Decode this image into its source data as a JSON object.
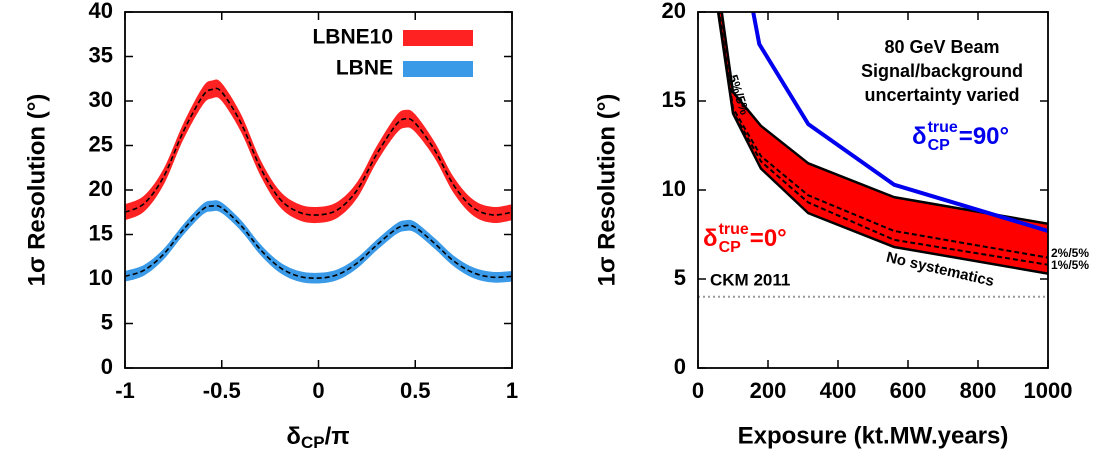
{
  "chart_data": [
    {
      "type": "band",
      "xlabel": {
        "base": "δ",
        "sub": "CP",
        "tail": "/π"
      },
      "ylabel": "1σ Resolution (°)",
      "xlim": [
        -1,
        1
      ],
      "xticks": [
        -1,
        -0.5,
        0,
        0.5,
        1
      ],
      "ylim": [
        0,
        40
      ],
      "yticks": [
        0,
        5,
        10,
        15,
        20,
        25,
        30,
        35,
        40
      ],
      "x": [
        -1,
        -0.9,
        -0.8,
        -0.7,
        -0.6,
        -0.55,
        -0.5,
        -0.4,
        -0.3,
        -0.2,
        -0.1,
        0,
        0.1,
        0.2,
        0.3,
        0.4,
        0.45,
        0.5,
        0.6,
        0.7,
        0.8,
        0.9,
        1
      ],
      "legend": "upper right",
      "series": [
        {
          "name": "LBNE10",
          "color": "#ff2222",
          "values": [
            17.5,
            18.5,
            21.5,
            26.5,
            30.5,
            31.3,
            31,
            27.5,
            22.5,
            19,
            17.5,
            17.2,
            17.8,
            20,
            24,
            27.3,
            28,
            27.5,
            24.5,
            20.5,
            18,
            17.2,
            17.5
          ],
          "upper": [
            18.4,
            19.4,
            22.4,
            27.4,
            31.5,
            32.3,
            32,
            28.5,
            23.4,
            19.9,
            18.4,
            18.1,
            18.7,
            20.9,
            24.9,
            28.3,
            29,
            28.5,
            25.4,
            21.4,
            18.9,
            18.1,
            18.4
          ],
          "lower": [
            16.6,
            17.6,
            20.6,
            25.6,
            29.5,
            30.3,
            30,
            26.5,
            21.6,
            18.1,
            16.6,
            16.3,
            16.9,
            19.1,
            23.1,
            26.3,
            27,
            26.5,
            23.6,
            19.6,
            17.1,
            16.3,
            16.6
          ]
        },
        {
          "name": "LBNE",
          "color": "#3a9ae8",
          "values": [
            10.3,
            11,
            12.8,
            15.5,
            17.8,
            18.2,
            18,
            16,
            13.3,
            11.3,
            10.3,
            10.1,
            10.5,
            11.8,
            13.8,
            15.6,
            16,
            15.8,
            14,
            12,
            10.7,
            10.2,
            10.3
          ],
          "upper": [
            10.9,
            11.6,
            13.4,
            16.1,
            18.4,
            18.8,
            18.6,
            16.6,
            13.9,
            11.9,
            10.9,
            10.7,
            11.1,
            12.4,
            14.4,
            16.2,
            16.6,
            16.4,
            14.6,
            12.6,
            11.3,
            10.8,
            10.9
          ],
          "lower": [
            9.7,
            10.4,
            12.2,
            14.9,
            17.2,
            17.6,
            17.4,
            15.4,
            12.7,
            10.7,
            9.7,
            9.5,
            9.9,
            11.2,
            13.2,
            15,
            15.4,
            15.2,
            13.4,
            11.4,
            10.1,
            9.6,
            9.7
          ]
        }
      ]
    },
    {
      "type": "line",
      "xlabel": "Exposure (kt.MW.years)",
      "ylabel": "1σ Resolution (°)",
      "xlim": [
        0,
        1000
      ],
      "xticks": [
        0,
        200,
        400,
        600,
        800,
        1000
      ],
      "ylim": [
        0,
        20
      ],
      "yticks": [
        0,
        5,
        10,
        15,
        20
      ],
      "x": [
        50,
        100,
        180,
        315,
        560,
        1000
      ],
      "band_between": [
        0,
        1
      ],
      "band_color": "#ff0000",
      "series": [
        {
          "name": "5%/5%",
          "color": "#000000",
          "dash": false,
          "values": [
            22.5,
            15.5,
            13.6,
            11.5,
            9.6,
            8.1
          ]
        },
        {
          "name": "No systematics",
          "color": "#000000",
          "dash": false,
          "values": [
            21,
            14.3,
            11.2,
            8.7,
            6.8,
            5.3
          ]
        },
        {
          "name": "2%/5%",
          "color": "#000000",
          "dash": true,
          "values": [
            21.5,
            14.6,
            11.9,
            9.7,
            7.7,
            6.2
          ]
        },
        {
          "name": "1%/5%",
          "color": "#000000",
          "dash": true,
          "values": [
            21.2,
            14.4,
            11.6,
            9.3,
            7.2,
            5.8
          ]
        },
        {
          "color": "#0000ee",
          "dash": false,
          "width": 4,
          "values": [
            26,
            18.2,
            13.7,
            10.3,
            7.7,
            null
          ]
        }
      ],
      "blue_x": [
        100,
        175,
        315,
        560,
        1000
      ],
      "reference_line": {
        "value": 4,
        "label": "CKM 2011",
        "color": "#999999"
      },
      "annotations": [
        "80 GeV Beam",
        "Signal/background",
        "uncertainty varied"
      ],
      "delta_labels": [
        {
          "base": "δ",
          "sup": "true",
          "sub": "CP",
          "tail": "=90°",
          "color": "#0000ee"
        },
        {
          "base": "δ",
          "sup": "true",
          "sub": "CP",
          "tail": "=0°",
          "color": "#ff0000"
        }
      ]
    }
  ]
}
